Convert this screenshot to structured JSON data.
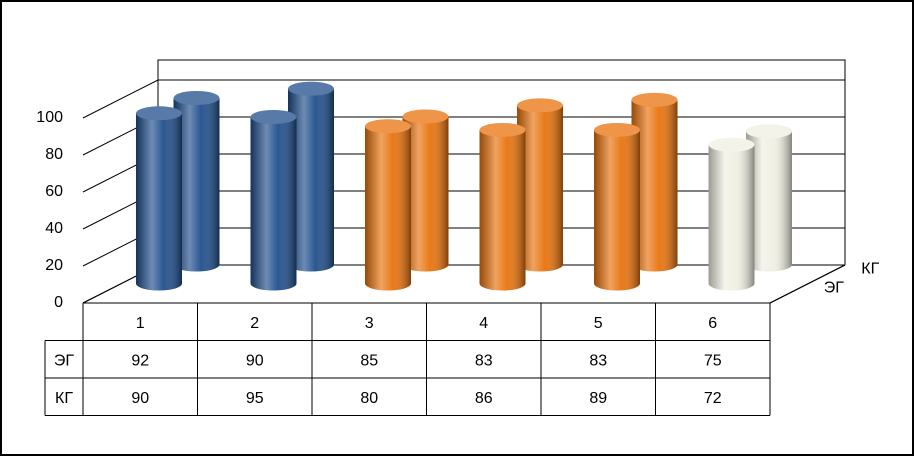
{
  "chart_data": {
    "type": "bar3d",
    "categories": [
      "1",
      "2",
      "3",
      "4",
      "5",
      "6"
    ],
    "colors": [
      "#1f4e8c",
      "#1f4e8c",
      "#e8720c",
      "#e8720c",
      "#e8720c",
      "#f0efe2"
    ],
    "series": [
      {
        "name": "ЭГ",
        "values": [
          92,
          90,
          85,
          83,
          83,
          75
        ]
      },
      {
        "name": "КГ",
        "values": [
          90,
          95,
          80,
          86,
          89,
          72
        ]
      }
    ],
    "ylim": [
      0,
      100
    ],
    "yticks": [
      0,
      20,
      40,
      60,
      80,
      100
    ],
    "grid": true,
    "data_table": true
  }
}
